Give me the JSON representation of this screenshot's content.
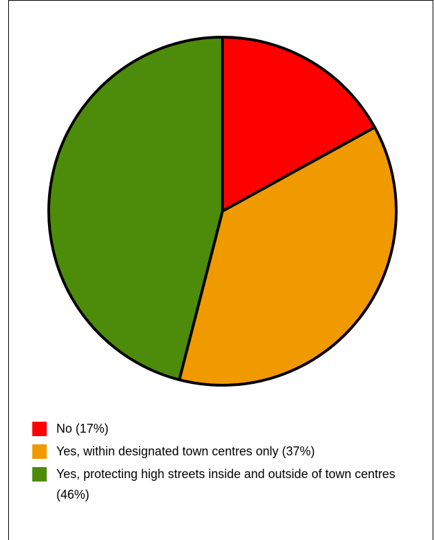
{
  "chart_data": {
    "type": "pie",
    "slices": [
      {
        "label": "No (17%)",
        "value": 17,
        "color": "#ff0000"
      },
      {
        "label": "Yes, within designated town centres only (37%)",
        "value": 37,
        "color": "#f09a00"
      },
      {
        "label": "Yes, protecting high streets inside and outside of town centres (46%)",
        "value": 46,
        "color": "#4d8c0a"
      }
    ],
    "legend_position": "bottom"
  }
}
